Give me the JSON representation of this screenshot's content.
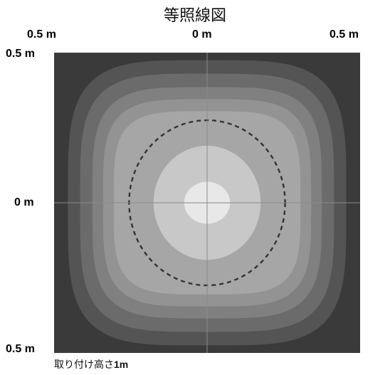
{
  "chart_data": {
    "type": "contour",
    "title": "等照線図",
    "x_tick_labels": [
      "0.5 m",
      "0 m",
      "0.5 m"
    ],
    "y_tick_labels": [
      "0.5 m",
      "0 m",
      "0.5 m"
    ],
    "x_range": [
      -0.5,
      0.5
    ],
    "y_range": [
      -0.5,
      0.5
    ],
    "unit": "m",
    "grid": "center crosshair",
    "levels": [
      {
        "level": 1,
        "hx": 0.455,
        "hy": 0.475,
        "color": "#545454"
      },
      {
        "level": 2,
        "hx": 0.415,
        "hy": 0.43,
        "color": "#6b6b6b"
      },
      {
        "level": 3,
        "hx": 0.375,
        "hy": 0.385,
        "color": "#808080"
      },
      {
        "level": 4,
        "hx": 0.34,
        "hy": 0.345,
        "color": "#939393"
      },
      {
        "level": 5,
        "hx": 0.305,
        "hy": 0.305,
        "color": "#a6a6a6"
      },
      {
        "level": 6,
        "hx": 0.175,
        "hy": 0.19,
        "color": "#c8c8c8"
      },
      {
        "level": 7,
        "hx": 0.075,
        "hy": 0.07,
        "color": "#e8e8e8"
      }
    ],
    "dashed_contour": {
      "hx": 0.255,
      "hy": 0.275,
      "color": "#333333"
    },
    "background_color": "#3a3a3a",
    "annotation": {
      "prefix": "取り付け高さ",
      "value": "1m"
    }
  }
}
